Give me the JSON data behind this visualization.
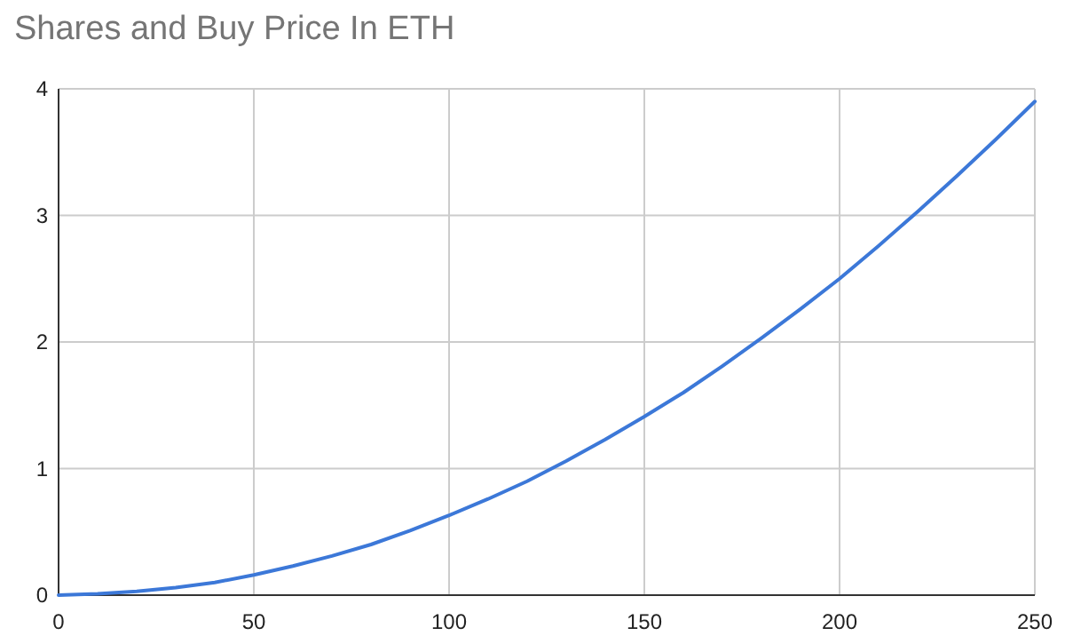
{
  "chart_data": {
    "type": "line",
    "title": "Shares and Buy Price In ETH",
    "x": [
      0,
      10,
      20,
      30,
      40,
      50,
      60,
      70,
      80,
      90,
      100,
      110,
      120,
      130,
      140,
      150,
      160,
      170,
      180,
      190,
      200,
      210,
      220,
      230,
      240,
      250
    ],
    "series": [
      {
        "color": "#3c78d8",
        "values": [
          0,
          0.01,
          0.03,
          0.06,
          0.1,
          0.16,
          0.23,
          0.31,
          0.4,
          0.51,
          0.63,
          0.76,
          0.9,
          1.06,
          1.23,
          1.41,
          1.6,
          1.81,
          2.03,
          2.26,
          2.5,
          2.76,
          3.03,
          3.31,
          3.6,
          3.9
        ]
      }
    ],
    "xlim": [
      0,
      250
    ],
    "xticks": [
      0,
      50,
      100,
      150,
      200,
      250
    ],
    "ylim": [
      0,
      4
    ],
    "yticks": [
      0,
      1,
      2,
      3,
      4
    ],
    "grid": true,
    "marker": "none",
    "line_style": "solid"
  }
}
